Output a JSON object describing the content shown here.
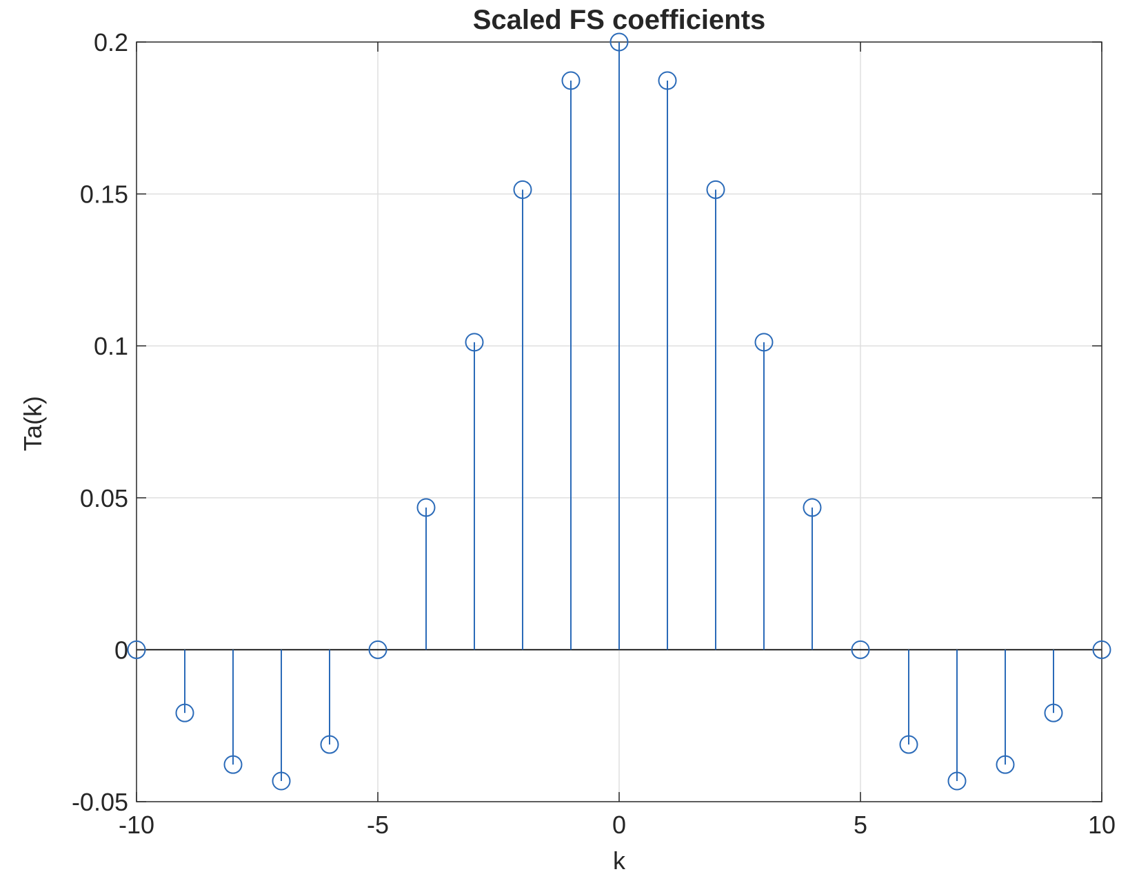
{
  "chart_data": {
    "type": "stem",
    "title": "Scaled FS coefficients",
    "xlabel": "k",
    "ylabel": "Ta(k)",
    "xlim": [
      -10,
      10
    ],
    "ylim": [
      -0.05,
      0.2
    ],
    "xticks": [
      -10,
      -5,
      0,
      5,
      10
    ],
    "xtick_labels": [
      "-10",
      "-5",
      "0",
      "5",
      "10"
    ],
    "yticks": [
      -0.05,
      0,
      0.05,
      0.1,
      0.15,
      0.2
    ],
    "ytick_labels": [
      "-0.05",
      "0",
      "0.05",
      "0.1",
      "0.15",
      "0.2"
    ],
    "grid": true,
    "series": [
      {
        "color": "#2a6ab8",
        "marker": "circle",
        "x": [
          -10,
          -9,
          -8,
          -7,
          -6,
          -5,
          -4,
          -3,
          -2,
          -1,
          0,
          1,
          2,
          3,
          4,
          5,
          6,
          7,
          8,
          9,
          10
        ],
        "y": [
          0,
          -0.0208,
          -0.0378,
          -0.0432,
          -0.0312,
          0,
          0.0468,
          0.1012,
          0.1514,
          0.1873,
          0.2,
          0.1873,
          0.1514,
          0.1012,
          0.0468,
          0,
          -0.0312,
          -0.0432,
          -0.0378,
          -0.0208,
          0
        ]
      }
    ]
  }
}
